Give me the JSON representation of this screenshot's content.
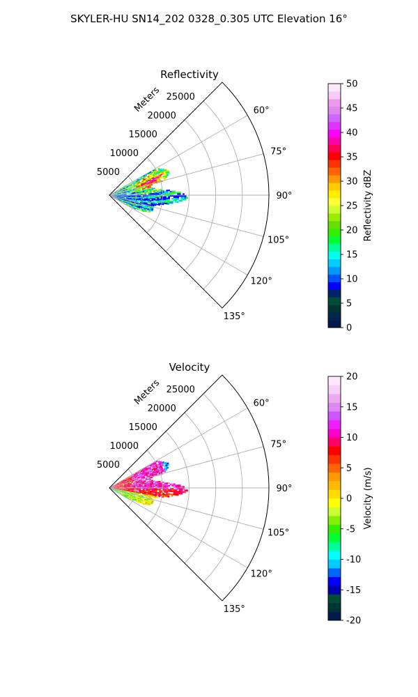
{
  "figure": {
    "title": "SKYLER-HU  SN14_202  0328_0.305 UTC Elevation 16°"
  },
  "chart_data": [
    {
      "type": "polar-sector",
      "title": "Reflectivity",
      "radial_label": "Meters",
      "r_ticks": [
        "5000",
        "10000",
        "15000",
        "20000",
        "25000"
      ],
      "r_max": 30000,
      "theta_range": [
        45,
        135
      ],
      "theta_ticks": [
        "60°",
        "75°",
        "90°",
        "105°",
        "120°",
        "135°"
      ],
      "grid": true,
      "colorbar": {
        "label": "Reflectivity dBZ",
        "ticks": [
          "0",
          "5",
          "10",
          "15",
          "20",
          "25",
          "30",
          "35",
          "40",
          "45",
          "50"
        ],
        "range": [
          0,
          50
        ]
      },
      "echo_region": {
        "theta_range": [
          60,
          120
        ],
        "r_range": [
          0,
          14500
        ]
      }
    },
    {
      "type": "polar-sector",
      "title": "Velocity",
      "radial_label": "Meters",
      "r_ticks": [
        "5000",
        "10000",
        "15000",
        "20000",
        "25000"
      ],
      "r_max": 30000,
      "theta_range": [
        45,
        135
      ],
      "theta_ticks": [
        "60°",
        "75°",
        "90°",
        "105°",
        "120°",
        "135°"
      ],
      "grid": true,
      "colorbar": {
        "label": "Velocity (m/s)",
        "ticks": [
          "-20",
          "-15",
          "-10",
          "-5",
          "0",
          "5",
          "10",
          "15",
          "20"
        ],
        "range": [
          -20,
          20
        ]
      },
      "echo_region": {
        "theta_range": [
          60,
          120
        ],
        "r_range": [
          0,
          14500
        ]
      }
    }
  ],
  "colors": {
    "reflectivity_scale": [
      "#001a4d",
      "#00264d",
      "#003333",
      "#004d33",
      "#00236b",
      "#0000ff",
      "#0055ff",
      "#0099ff",
      "#00ccff",
      "#00ffee",
      "#00ff99",
      "#00ff33",
      "#33ee00",
      "#66dd00",
      "#99ee00",
      "#ccff33",
      "#ffff33",
      "#ffee00",
      "#ffcc00",
      "#ff9900",
      "#ff6600",
      "#ff3300",
      "#ff0000",
      "#ff0055",
      "#ff00aa",
      "#ff00ff",
      "#dd33ff",
      "#cc66ff",
      "#dd88ee",
      "#ee99ee",
      "#f5ccf5",
      "#fde8fd"
    ],
    "velocity_scale": [
      "#001a4d",
      "#003333",
      "#004d33",
      "#0000aa",
      "#0000ff",
      "#0066ff",
      "#00ccff",
      "#00ffff",
      "#00ff99",
      "#00ff33",
      "#33ee00",
      "#88ee00",
      "#ccff33",
      "#ffff00",
      "#ffdd00",
      "#ffbb00",
      "#ff9900",
      "#ff6600",
      "#ff3300",
      "#ff0000",
      "#ff0066",
      "#ff00cc",
      "#ee22ff",
      "#cc55ff",
      "#dd88ee",
      "#eeaaee",
      "#f6d0f6",
      "#fde8fd"
    ]
  }
}
